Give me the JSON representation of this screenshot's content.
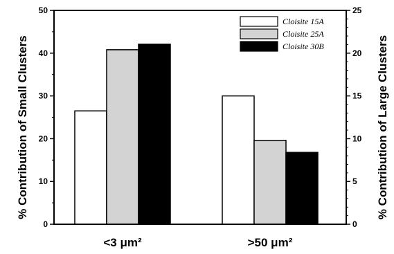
{
  "chart_data": {
    "type": "bar",
    "categories": [
      "<3 μm²",
      ">50 μm²"
    ],
    "series": [
      {
        "name": "Cloisite  15A",
        "color": "#ffffff",
        "values": [
          26.5,
          15.0
        ]
      },
      {
        "name": "Cloisite  25A",
        "color": "#d3d3d3",
        "values": [
          40.8,
          9.8
        ]
      },
      {
        "name": "Cloisite  30B",
        "color": "#000000",
        "values": [
          42.1,
          8.4
        ]
      }
    ],
    "value_axis_note": "Values for '<3 μm²' read on left axis (Small Clusters); values for '>50 μm²' read on right axis (Large Clusters).",
    "ylabel_left": "% Contribution of Small Clusters",
    "ylabel_right": "% Contribution of Large Clusters",
    "ylim_left": [
      0,
      50
    ],
    "ylim_right": [
      0,
      25
    ],
    "yticks_left": [
      "0",
      "10",
      "20",
      "30",
      "40",
      "50"
    ],
    "yticks_right": [
      "0",
      "5",
      "10",
      "15",
      "20",
      "25"
    ],
    "legend_position": "top-right",
    "grid": false
  }
}
